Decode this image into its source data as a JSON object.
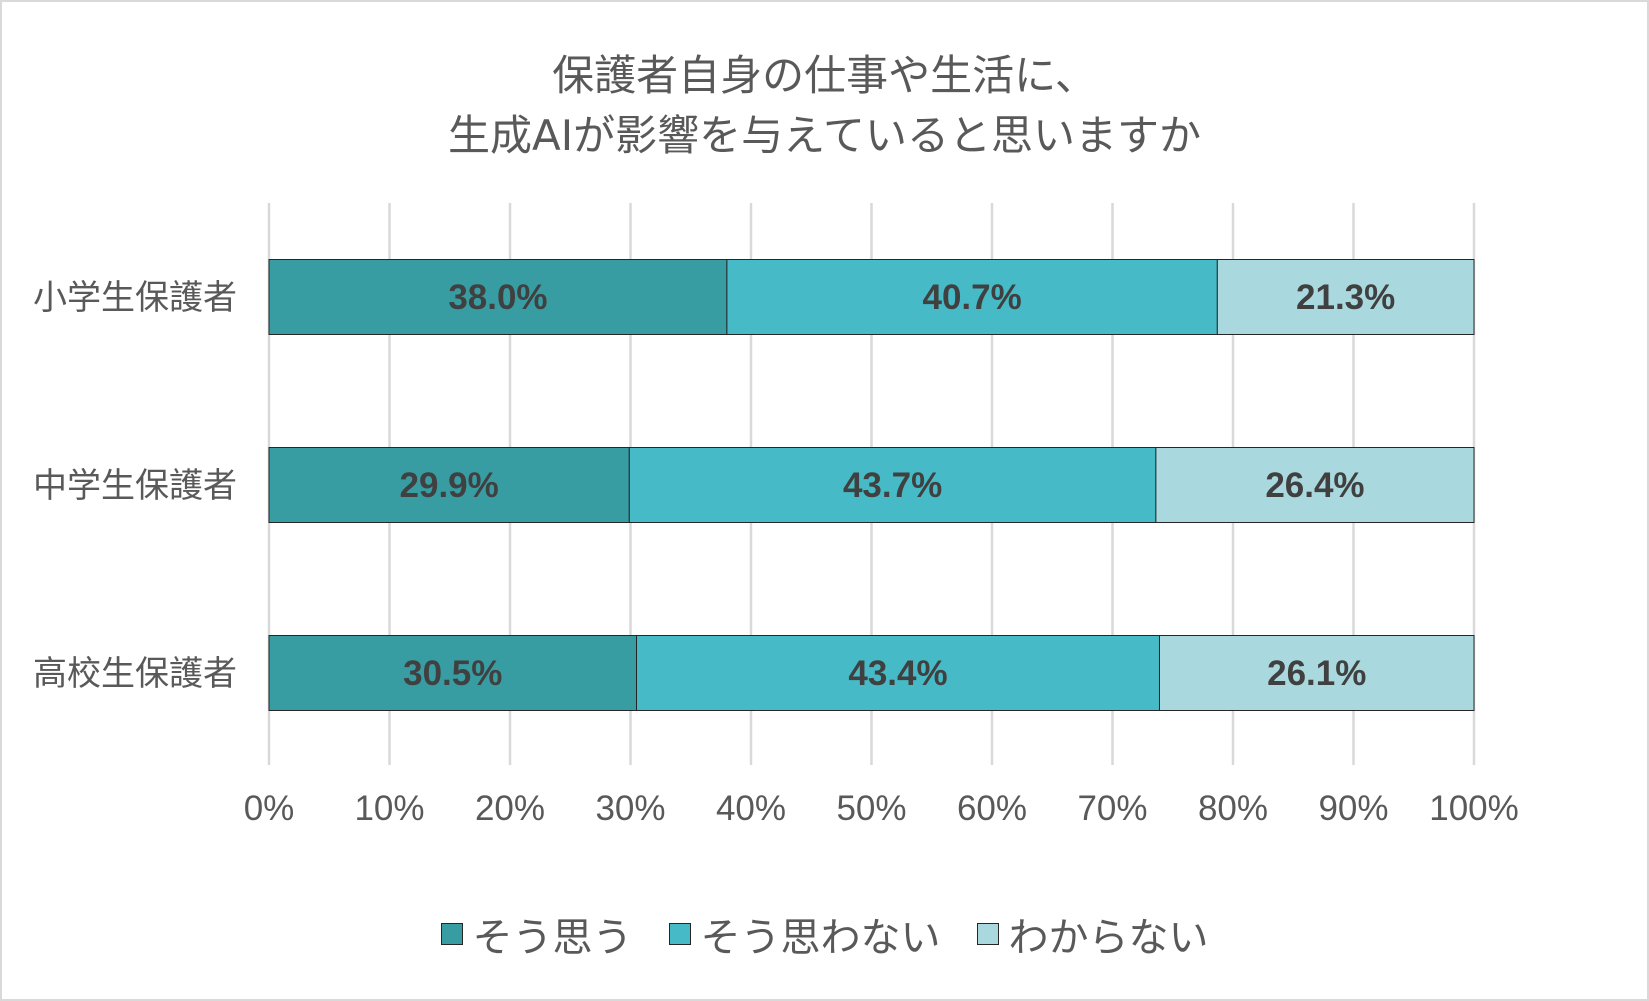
{
  "chart_data": {
    "type": "bar",
    "orientation": "horizontal",
    "stacked": true,
    "title": [
      "保護者自身の仕事や生活に、",
      "生成AIが影響を与えていると思いますか"
    ],
    "categories": [
      "小学生保護者",
      "中学生保護者",
      "高校生保護者"
    ],
    "series": [
      {
        "name": "そう思う",
        "color": "#389DA3",
        "values": [
          38.0,
          29.9,
          30.5
        ],
        "labels": [
          "38.0%",
          "29.9%",
          "30.5%"
        ]
      },
      {
        "name": "そう思わない",
        "color": "#46BBC7",
        "values": [
          40.7,
          43.7,
          43.4
        ],
        "labels": [
          "40.7%",
          "43.7%",
          "43.4%"
        ]
      },
      {
        "name": "わからない",
        "color": "#A9D9DE",
        "values": [
          21.3,
          26.4,
          26.1
        ],
        "labels": [
          "21.3%",
          "26.4%",
          "26.1%"
        ]
      }
    ],
    "xlim": [
      0,
      100
    ],
    "xticks": [
      "0%",
      "10%",
      "20%",
      "30%",
      "40%",
      "50%",
      "60%",
      "70%",
      "80%",
      "90%",
      "100%"
    ],
    "grid": true,
    "legend_position": "bottom"
  }
}
